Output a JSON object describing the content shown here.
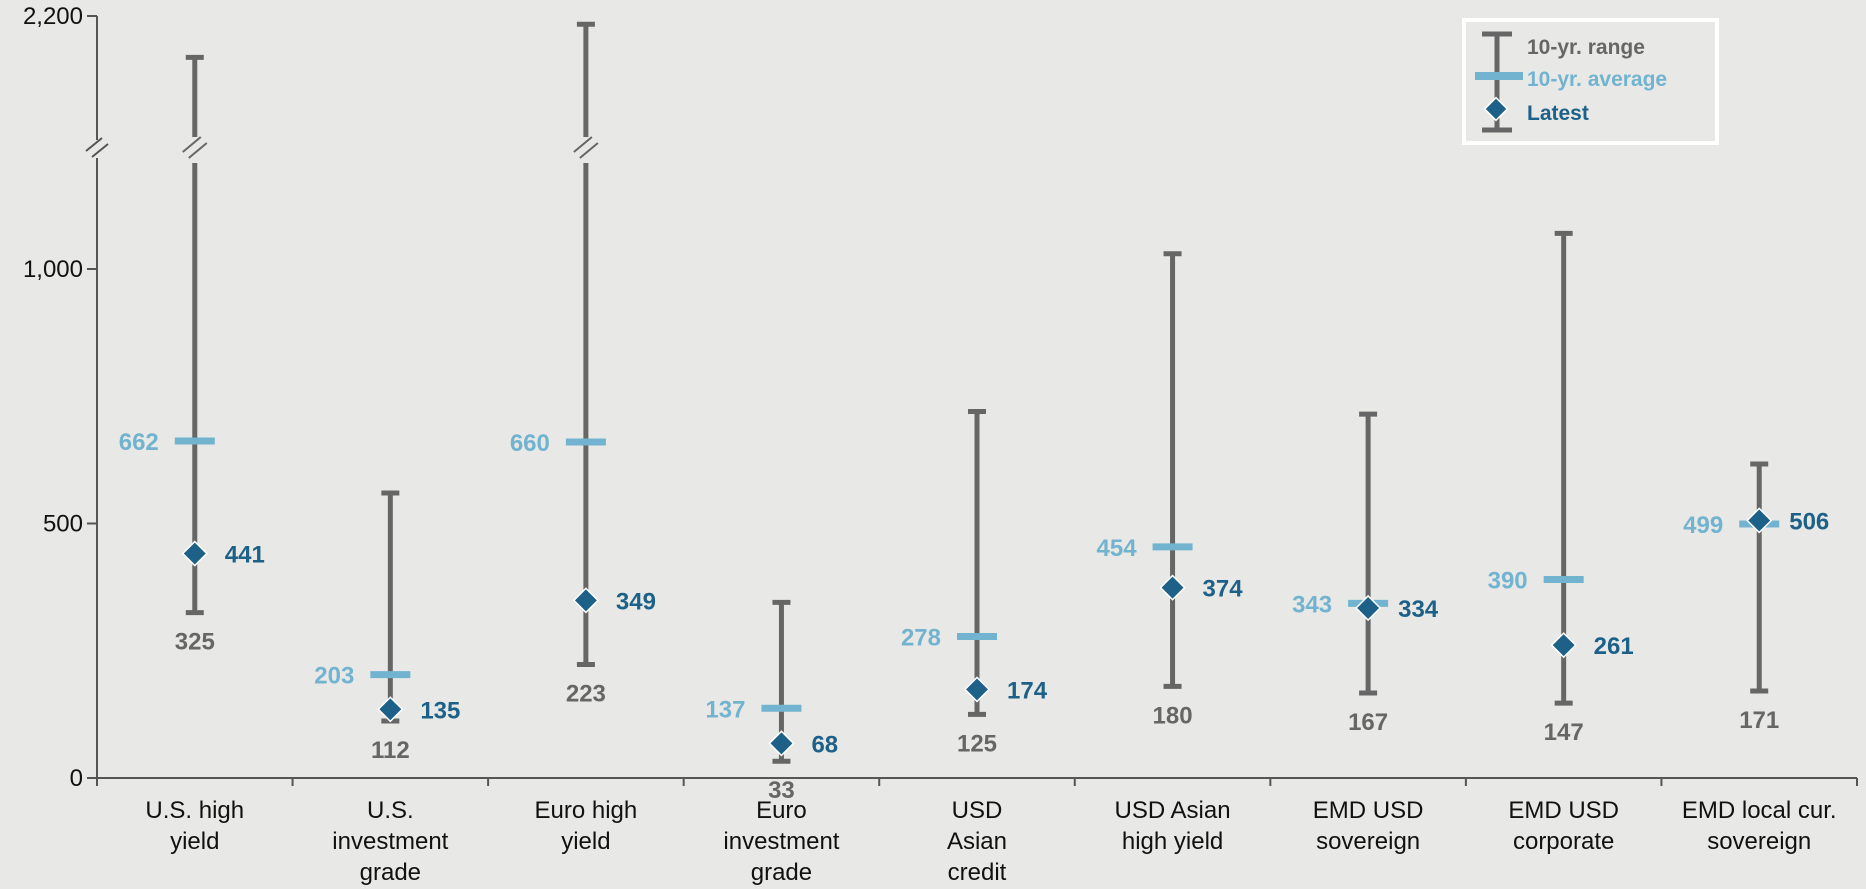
{
  "chart_data": {
    "type": "range",
    "title": "",
    "xlabel": "",
    "ylabel": "",
    "ylim": [
      0,
      2200
    ],
    "y_axis_break": {
      "from": 1200,
      "to": 2050
    },
    "y_ticks": [
      {
        "value": 0,
        "label": "0"
      },
      {
        "value": 500,
        "label": "500"
      },
      {
        "value": 1000,
        "label": "1,000"
      },
      {
        "value": 2200,
        "label": "2,200"
      }
    ],
    "categories": [
      {
        "lines": [
          "U.S. high",
          "yield"
        ]
      },
      {
        "lines": [
          "U.S.",
          "investment",
          "grade"
        ]
      },
      {
        "lines": [
          "Euro high",
          "yield"
        ]
      },
      {
        "lines": [
          "Euro",
          "investment",
          "grade"
        ]
      },
      {
        "lines": [
          "USD",
          "Asian",
          "credit"
        ]
      },
      {
        "lines": [
          "USD Asian",
          "high yield"
        ]
      },
      {
        "lines": [
          "EMD USD",
          "sovereign"
        ]
      },
      {
        "lines": [
          "EMD USD",
          "corporate"
        ]
      },
      {
        "lines": [
          "EMD local cur.",
          "sovereign"
        ]
      }
    ],
    "series": [
      {
        "name": "10-yr. range",
        "type": "range",
        "color": "#666666",
        "low": [
          325,
          112,
          223,
          33,
          125,
          180,
          167,
          147,
          171
        ],
        "high": [
          2150,
          560,
          2190,
          345,
          720,
          1030,
          715,
          1070,
          617
        ]
      },
      {
        "name": "10-yr. average",
        "type": "marker-dash",
        "color": "#72b3cf",
        "values": [
          662,
          203,
          660,
          137,
          278,
          454,
          343,
          390,
          499
        ]
      },
      {
        "name": "Latest",
        "type": "marker-diamond",
        "color": "#1d6188",
        "values": [
          441,
          135,
          349,
          68,
          174,
          374,
          334,
          261,
          506
        ]
      }
    ],
    "low_labels": [
      "325",
      "112",
      "223",
      "33",
      "125",
      "180",
      "167",
      "147",
      "171"
    ],
    "average_labels": [
      "662",
      "203",
      "660",
      "137",
      "278",
      "454",
      "343",
      "390",
      "499"
    ],
    "latest_labels": [
      "441",
      "135",
      "349",
      "68",
      "174",
      "374",
      "334",
      "261",
      "506"
    ],
    "grid": false,
    "legend": {
      "position": "top-right",
      "items": [
        "10-yr. range",
        "10-yr. average",
        "Latest"
      ]
    }
  }
}
